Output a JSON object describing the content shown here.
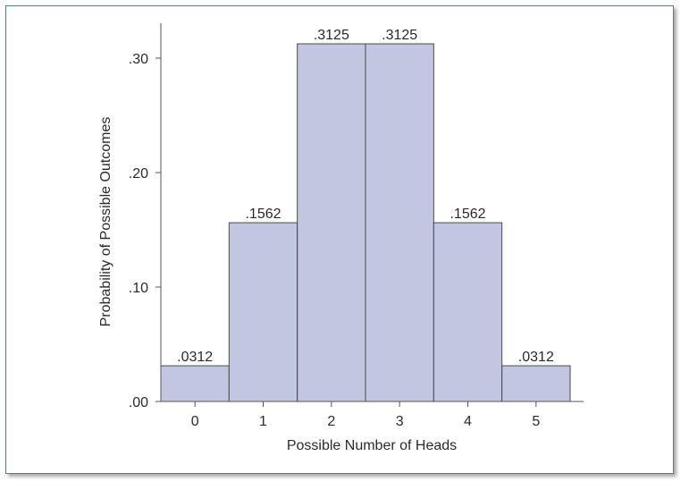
{
  "chart_data": {
    "type": "bar",
    "categories": [
      "0",
      "1",
      "2",
      "3",
      "4",
      "5"
    ],
    "values": [
      0.0312,
      0.1562,
      0.3125,
      0.3125,
      0.1562,
      0.0312
    ],
    "data_labels": [
      ".0312",
      ".1562",
      ".3125",
      ".3125",
      ".1562",
      ".0312"
    ],
    "xlabel": "Possible Number of Heads",
    "ylabel": "Probability of Possible Outcomes",
    "yticks": [
      0,
      0.1,
      0.2,
      0.3
    ],
    "ytick_labels": [
      ".00",
      ".10",
      ".20",
      ".30"
    ],
    "ylim": [
      0,
      0.33
    ],
    "bar_color": "#c2c6e0",
    "bar_edge_color": "#4a4a4a",
    "grid": false,
    "legend": "none"
  }
}
